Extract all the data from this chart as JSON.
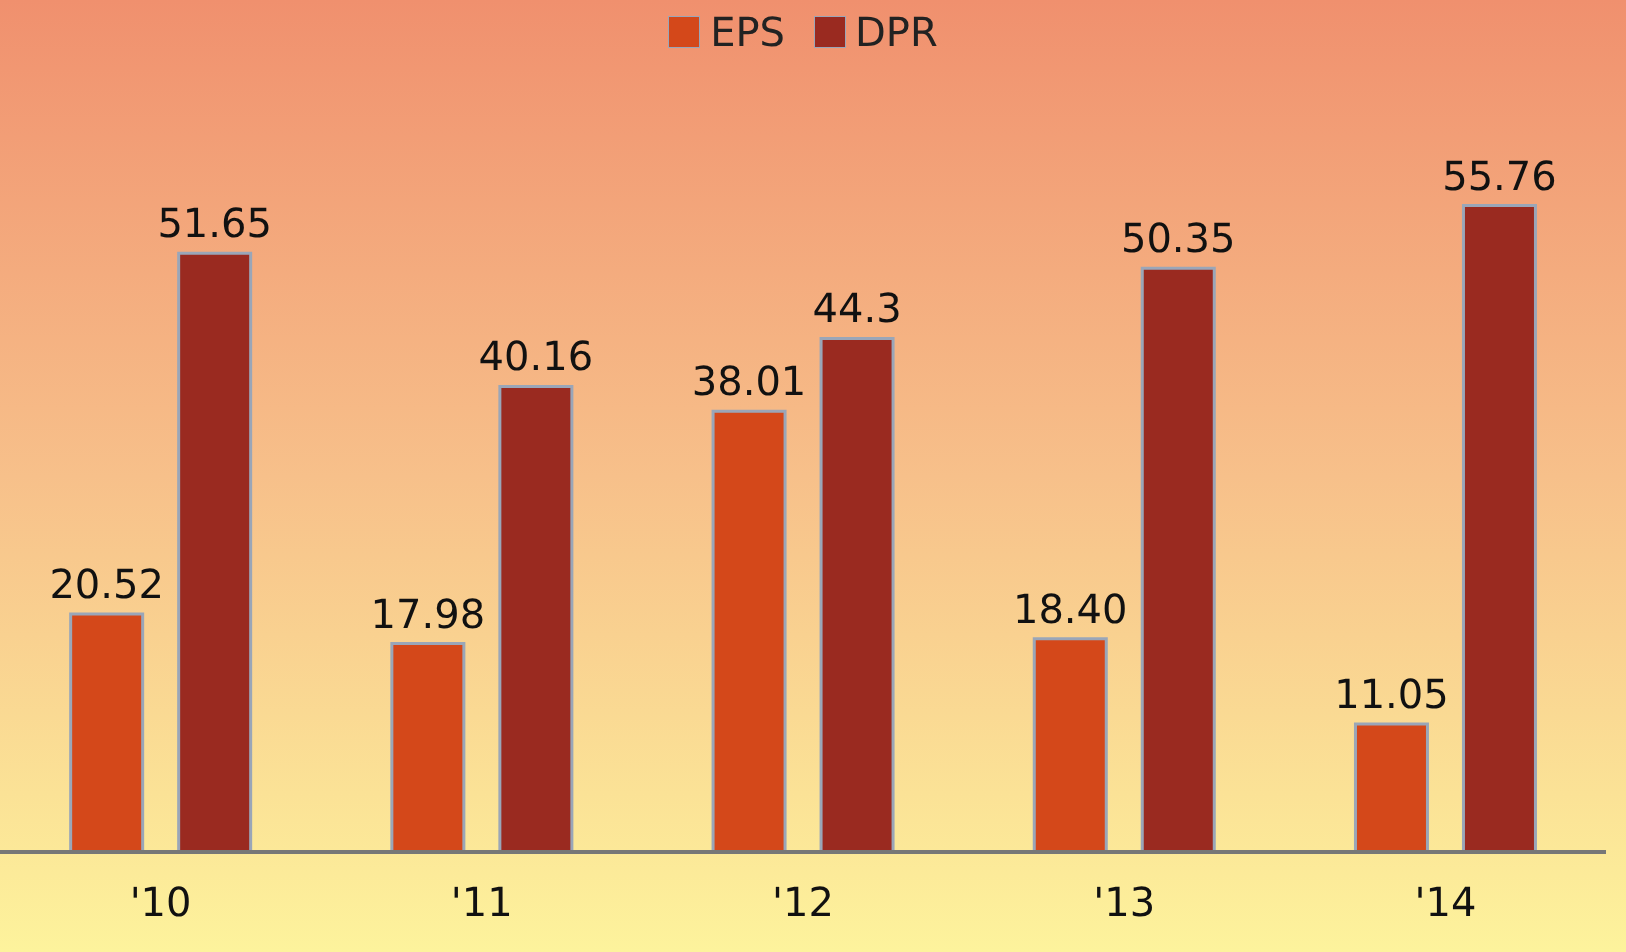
{
  "chart_data": {
    "type": "bar",
    "categories": [
      "'10",
      "'11",
      "'12",
      "'13",
      "'14"
    ],
    "series": [
      {
        "name": "EPS",
        "color": "#d4481a",
        "values": [
          20.52,
          17.98,
          38.01,
          18.4,
          11.05
        ],
        "value_labels": [
          "20.52",
          "17.98",
          "38.01",
          "18.40",
          "11.05"
        ]
      },
      {
        "name": "DPR",
        "color": "#9a2a20",
        "values": [
          51.65,
          40.16,
          44.3,
          50.35,
          55.76
        ],
        "value_labels": [
          "51.65",
          "40.16",
          "44.3",
          "50.35",
          "55.76"
        ]
      }
    ],
    "legend": "top",
    "grid": false
  }
}
